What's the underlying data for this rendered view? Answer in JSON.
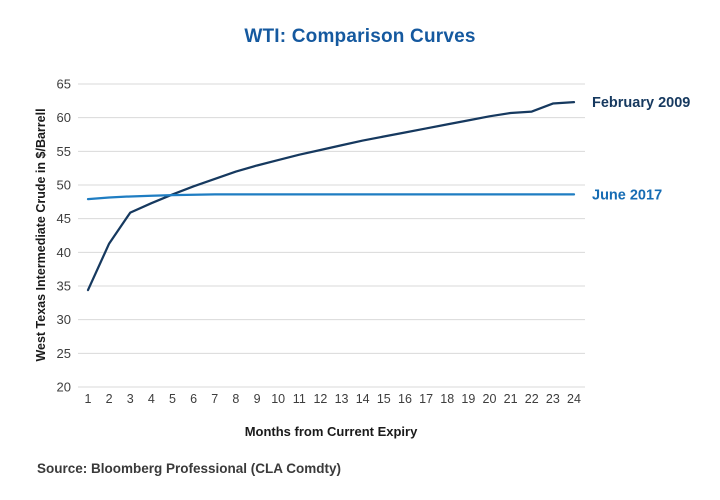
{
  "page": {
    "source": "Source: Bloomberg Professional (CLA Comdty)"
  },
  "chart_data": {
    "type": "line",
    "title": "WTI: Comparison Curves",
    "xlabel": "Months from Current Expiry",
    "ylabel": "West Texas Intermediate Crude in $/Barrell",
    "x": [
      1,
      2,
      3,
      4,
      5,
      6,
      7,
      8,
      9,
      10,
      11,
      12,
      13,
      14,
      15,
      16,
      17,
      18,
      19,
      20,
      21,
      22,
      23,
      24
    ],
    "ylim": [
      20,
      65
    ],
    "ytick_step": 5,
    "grid": "horizontal-gridlines",
    "legend_position": "right-of-line-ends",
    "colors": {
      "title": "#15599f",
      "grid": "#d9d9d9",
      "tick_text": "#3d3d3d",
      "axis_title_text": "#1a1a1a",
      "source_text": "#3a3a3a"
    },
    "series": [
      {
        "name": "February 2009",
        "color": "#16395f",
        "label_color": "#16395f",
        "values": [
          34.4,
          41.3,
          45.9,
          47.3,
          48.6,
          49.8,
          50.9,
          52.0,
          52.9,
          53.7,
          54.5,
          55.2,
          55.9,
          56.6,
          57.2,
          57.8,
          58.4,
          59.0,
          59.6,
          60.2,
          60.7,
          60.9,
          62.1,
          62.3
        ]
      },
      {
        "name": "June 2017",
        "color": "#1f7dc2",
        "label_color": "#166cb4",
        "values": [
          47.9,
          48.15,
          48.3,
          48.4,
          48.5,
          48.55,
          48.6,
          48.6,
          48.6,
          48.6,
          48.6,
          48.6,
          48.6,
          48.6,
          48.6,
          48.6,
          48.6,
          48.6,
          48.6,
          48.6,
          48.6,
          48.6,
          48.6,
          48.6
        ]
      }
    ]
  }
}
